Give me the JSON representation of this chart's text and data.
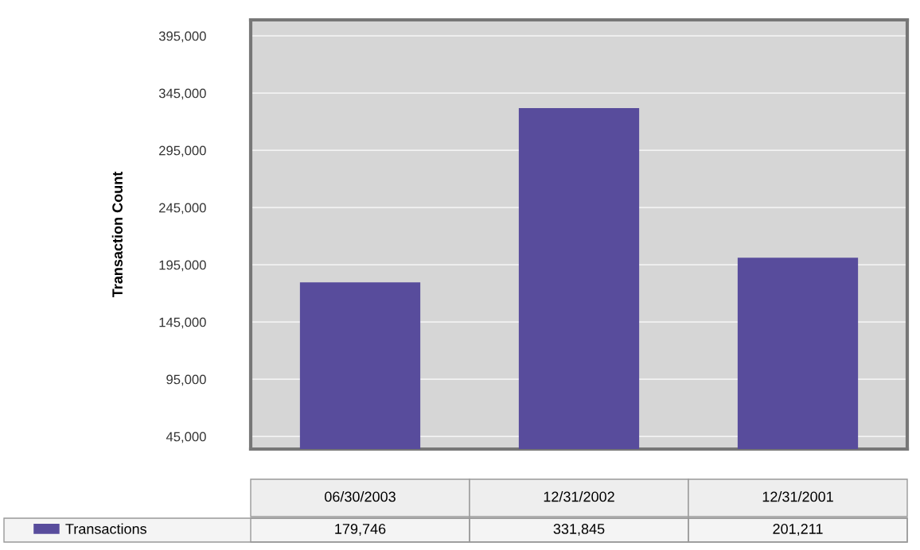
{
  "chart_data": {
    "type": "bar",
    "ylabel": "Transaction Count",
    "categories": [
      "06/30/2003",
      "12/31/2002",
      "12/31/2001"
    ],
    "series": [
      {
        "name": "Transactions",
        "color": "#584c9c",
        "values": [
          179746,
          331845,
          201211
        ],
        "value_labels": [
          "179,746",
          "331,845",
          "201,211"
        ]
      }
    ],
    "ylim": [
      34000,
      409000
    ],
    "yticks": [
      {
        "value": 45000,
        "label": "45,000"
      },
      {
        "value": 95000,
        "label": "95,000"
      },
      {
        "value": 145000,
        "label": "145,000"
      },
      {
        "value": 195000,
        "label": "195,000"
      },
      {
        "value": 245000,
        "label": "245,000"
      },
      {
        "value": 295000,
        "label": "295,000"
      },
      {
        "value": 345000,
        "label": "345,000"
      },
      {
        "value": 395000,
        "label": "395,000"
      }
    ],
    "grid": "y",
    "legend": "bottom left"
  }
}
